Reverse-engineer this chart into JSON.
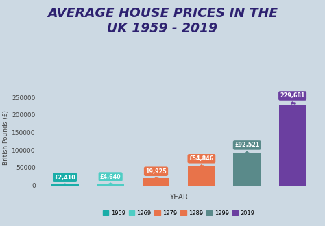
{
  "title": "AVERAGE HOUSE PRICES IN THE\nUK 1959 - 2019",
  "years": [
    "1959",
    "1969",
    "1979",
    "1989",
    "1999",
    "2019"
  ],
  "values": [
    2410,
    4640,
    19925,
    54846,
    92521,
    229681
  ],
  "labels": [
    "£2,410",
    "£4,640",
    "19,925",
    "£54,846",
    "£92,521",
    "229,681"
  ],
  "bar_colors": [
    "#1aada8",
    "#4ecdc4",
    "#e8734a",
    "#e8734a",
    "#5a8a8a",
    "#6b3fa0"
  ],
  "background_color": "#ccd9e3",
  "xlabel": "YEAR",
  "ylabel": "British Pounds (£)",
  "ylim": [
    0,
    270000
  ],
  "yticks": [
    0,
    50000,
    100000,
    150000,
    200000,
    250000
  ],
  "legend_labels": [
    "1959",
    "1969",
    "1979",
    "1989",
    "1999",
    "2019"
  ],
  "legend_colors": [
    "#1aada8",
    "#4ecdc4",
    "#e8734a",
    "#e8734a",
    "#5a8a8a",
    "#6b3fa0"
  ],
  "title_color": "#2d2170",
  "annotation_bg_colors": [
    "#1aada8",
    "#4ecdc4",
    "#e8734a",
    "#e8734a",
    "#5a8a8a",
    "#6b3fa0"
  ],
  "annotation_text_color": "white",
  "annotation_offsets": [
    11000,
    11000,
    11000,
    12000,
    13000,
    16000
  ]
}
